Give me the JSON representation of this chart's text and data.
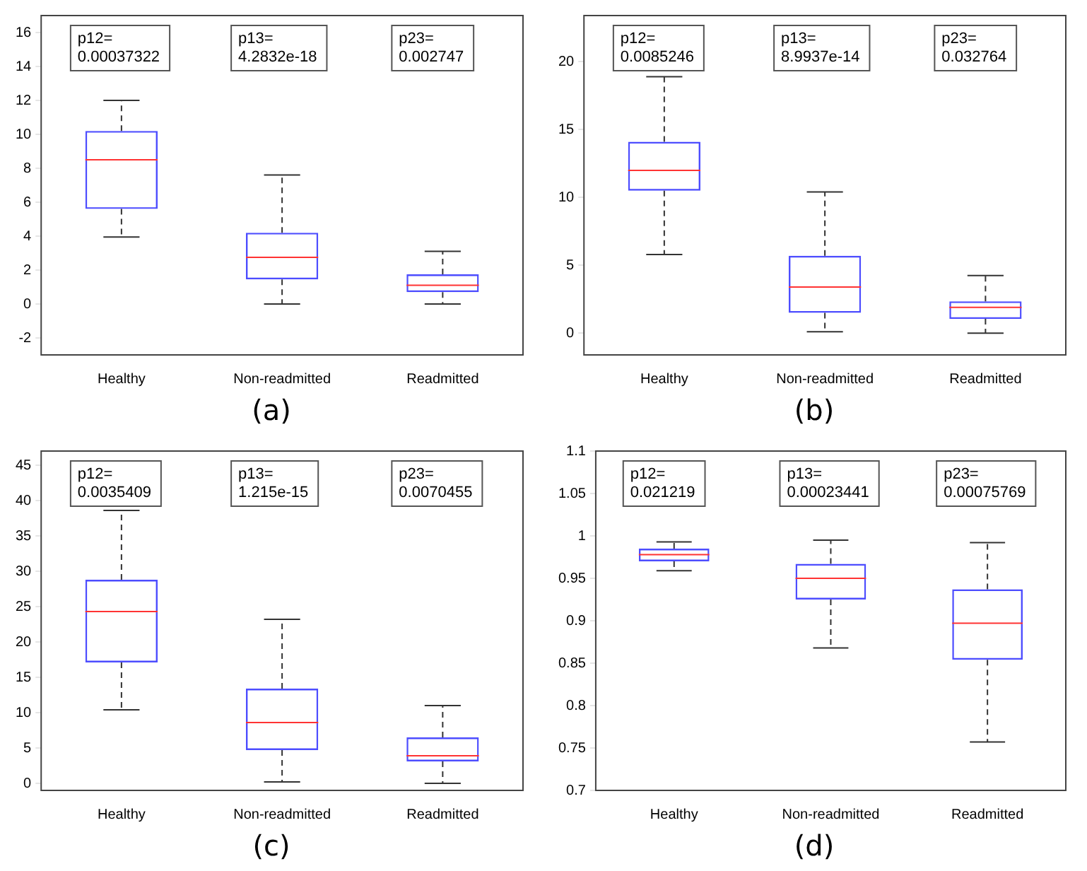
{
  "chart_data": [
    {
      "type": "box",
      "title": "(a)",
      "categories": [
        "Healthy",
        "Non-readmitted",
        "Readmitted"
      ],
      "ylim": [
        -3,
        17
      ],
      "yticks": [
        -2,
        0,
        2,
        4,
        6,
        8,
        10,
        12,
        14,
        16
      ],
      "grid": false,
      "annotations": [
        "p12=\n0.00037322",
        "p13=\n4.2832e-18",
        "p23=\n0.002747"
      ],
      "series": [
        {
          "color": "#4d4dff",
          "boxes": [
            {
              "low": 3.95,
              "q1": 5.6,
              "median": 8.5,
              "q3": 10.2,
              "high": 12
            },
            {
              "low": 0,
              "q1": 1.45,
              "median": 2.75,
              "q3": 4.2,
              "high": 7.6
            },
            {
              "low": 0,
              "q1": 0.7,
              "median": 1.1,
              "q3": 1.75,
              "high": 3.1
            }
          ]
        }
      ]
    },
    {
      "type": "box",
      "title": "(b)",
      "categories": [
        "Healthy",
        "Non-readmitted",
        "Readmitted"
      ],
      "ylim": [
        -1.6,
        23.4
      ],
      "yticks": [
        0,
        5,
        10,
        15,
        20
      ],
      "grid": false,
      "annotations": [
        "p12=\n0.0085246",
        "p13=\n8.9937e-14",
        "p23=\n0.032764"
      ],
      "series": [
        {
          "color": "#4d4dff",
          "boxes": [
            {
              "low": 5.8,
              "q1": 10.5,
              "median": 12,
              "q3": 14.1,
              "high": 18.9
            },
            {
              "low": 0.1,
              "q1": 1.5,
              "median": 3.4,
              "q3": 5.7,
              "high": 10.4
            },
            {
              "low": 0,
              "q1": 1.05,
              "median": 1.9,
              "q3": 2.35,
              "high": 4.25
            }
          ]
        }
      ]
    },
    {
      "type": "box",
      "title": "(c)",
      "categories": [
        "Healthy",
        "Non-readmitted",
        "Readmitted"
      ],
      "ylim": [
        -1,
        47
      ],
      "yticks": [
        0,
        5,
        10,
        15,
        20,
        25,
        30,
        35,
        40,
        45
      ],
      "grid": false,
      "annotations": [
        "p12=\n0.0035409",
        "p13=\n1.215e-15",
        "p23=\n0.0070455"
      ],
      "series": [
        {
          "color": "#4d4dff",
          "boxes": [
            {
              "low": 10.4,
              "q1": 17.1,
              "median": 24.3,
              "q3": 28.8,
              "high": 38.6
            },
            {
              "low": 0.2,
              "q1": 4.7,
              "median": 8.6,
              "q3": 13.4,
              "high": 23.2
            },
            {
              "low": 0,
              "q1": 3.1,
              "median": 3.9,
              "q3": 6.5,
              "high": 11
            }
          ]
        }
      ]
    },
    {
      "type": "box",
      "title": "(d)",
      "categories": [
        "Healthy",
        "Non-readmitted",
        "Readmitted"
      ],
      "ylim": [
        0.7,
        1.1
      ],
      "yticks": [
        0.7,
        0.75,
        0.8,
        0.85,
        0.9,
        0.95,
        1,
        1.05,
        1.1
      ],
      "grid": false,
      "annotations": [
        "p12=\n0.021219",
        "p13=\n0.00023441",
        "p23=\n0.00075769"
      ],
      "series": [
        {
          "color": "#4d4dff",
          "boxes": [
            {
              "low": 0.959,
              "q1": 0.97,
              "median": 0.978,
              "q3": 0.985,
              "high": 0.993
            },
            {
              "low": 0.868,
              "q1": 0.925,
              "median": 0.95,
              "q3": 0.967,
              "high": 0.995
            },
            {
              "low": 0.757,
              "q1": 0.854,
              "median": 0.897,
              "q3": 0.937,
              "high": 0.992
            }
          ]
        }
      ]
    }
  ]
}
